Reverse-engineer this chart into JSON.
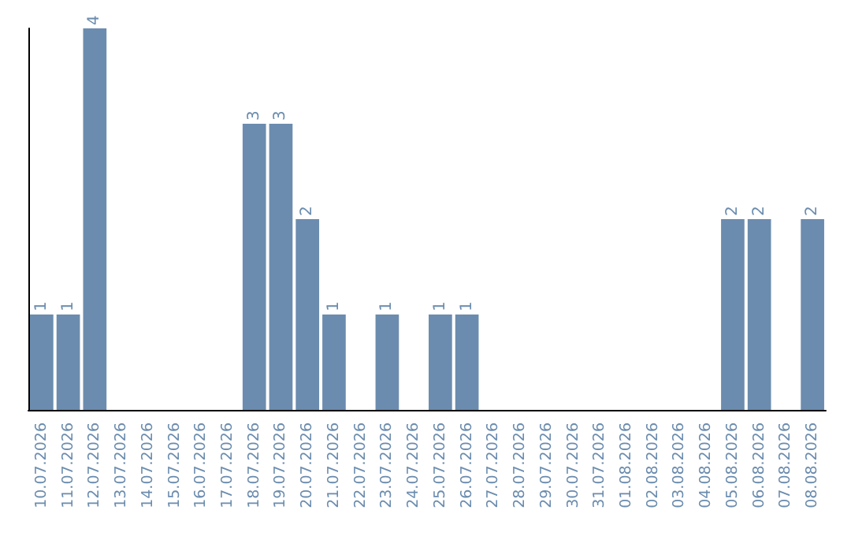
{
  "chart_data": {
    "type": "bar",
    "categories": [
      "10.07.2026",
      "11.07.2026",
      "12.07.2026",
      "13.07.2026",
      "14.07.2026",
      "15.07.2026",
      "16.07.2026",
      "17.07.2026",
      "18.07.2026",
      "19.07.2026",
      "20.07.2026",
      "21.07.2026",
      "22.07.2026",
      "23.07.2026",
      "24.07.2026",
      "25.07.2026",
      "26.07.2026",
      "27.07.2026",
      "28.07.2026",
      "29.07.2026",
      "30.07.2026",
      "31.07.2026",
      "01.08.2026",
      "02.08.2026",
      "03.08.2026",
      "04.08.2026",
      "05.08.2026",
      "06.08.2026",
      "07.08.2026",
      "08.08.2026"
    ],
    "values": [
      1,
      1,
      4,
      0,
      0,
      0,
      0,
      0,
      3,
      3,
      2,
      1,
      0,
      1,
      0,
      1,
      1,
      0,
      0,
      0,
      0,
      0,
      0,
      0,
      0,
      0,
      2,
      2,
      0,
      2
    ],
    "value_labels": [
      "1",
      "1",
      "4",
      null,
      null,
      null,
      null,
      null,
      "3",
      "3",
      "2",
      "1",
      null,
      "1",
      null,
      "1",
      "1",
      null,
      null,
      null,
      null,
      null,
      null,
      null,
      null,
      null,
      "2",
      "2",
      null,
      "2"
    ],
    "color": "#6b8cae",
    "ylim": [
      0,
      4
    ],
    "tick_labels": "x"
  }
}
